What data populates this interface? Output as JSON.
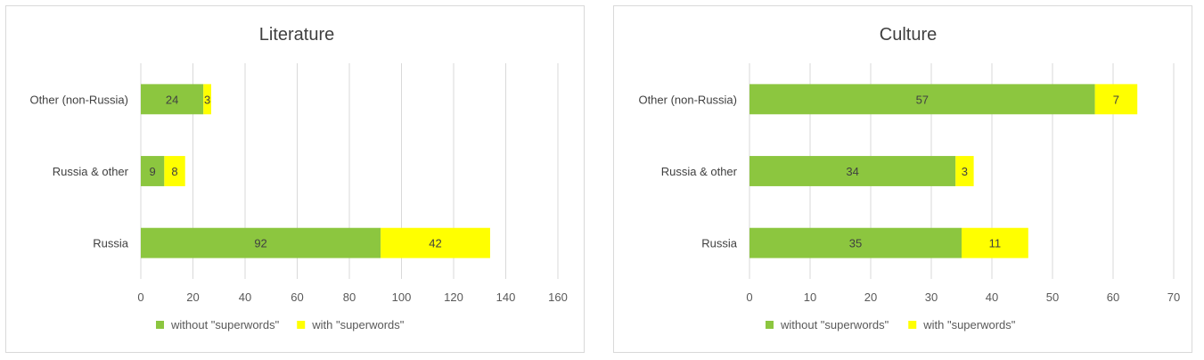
{
  "chart_data": [
    {
      "type": "bar",
      "orientation": "horizontal",
      "stacked": true,
      "title": "Literature",
      "categories": [
        "Other (non-Russia)",
        "Russia & other",
        "Russia"
      ],
      "series": [
        {
          "name": "without \"superwords\"",
          "values": [
            24,
            9,
            92
          ],
          "color": "#8cc63f"
        },
        {
          "name": "with \"superwords\"",
          "values": [
            3,
            8,
            42
          ],
          "color": "#ffff00"
        }
      ],
      "x_ticks": [
        "0",
        "20",
        "40",
        "60",
        "80",
        "100",
        "120",
        "140",
        "160"
      ],
      "xlim": [
        0,
        160
      ],
      "grid": true,
      "legend_position": "bottom"
    },
    {
      "type": "bar",
      "orientation": "horizontal",
      "stacked": true,
      "title": "Culture",
      "categories": [
        "Other (non-Russia)",
        "Russia & other",
        "Russia"
      ],
      "series": [
        {
          "name": "without \"superwords\"",
          "values": [
            57,
            34,
            35
          ],
          "color": "#8cc63f"
        },
        {
          "name": "with \"superwords\"",
          "values": [
            7,
            3,
            11
          ],
          "color": "#ffff00"
        }
      ],
      "x_ticks": [
        "0",
        "10",
        "20",
        "30",
        "40",
        "50",
        "60",
        "70"
      ],
      "xlim": [
        0,
        70
      ],
      "grid": true,
      "legend_position": "bottom"
    }
  ]
}
